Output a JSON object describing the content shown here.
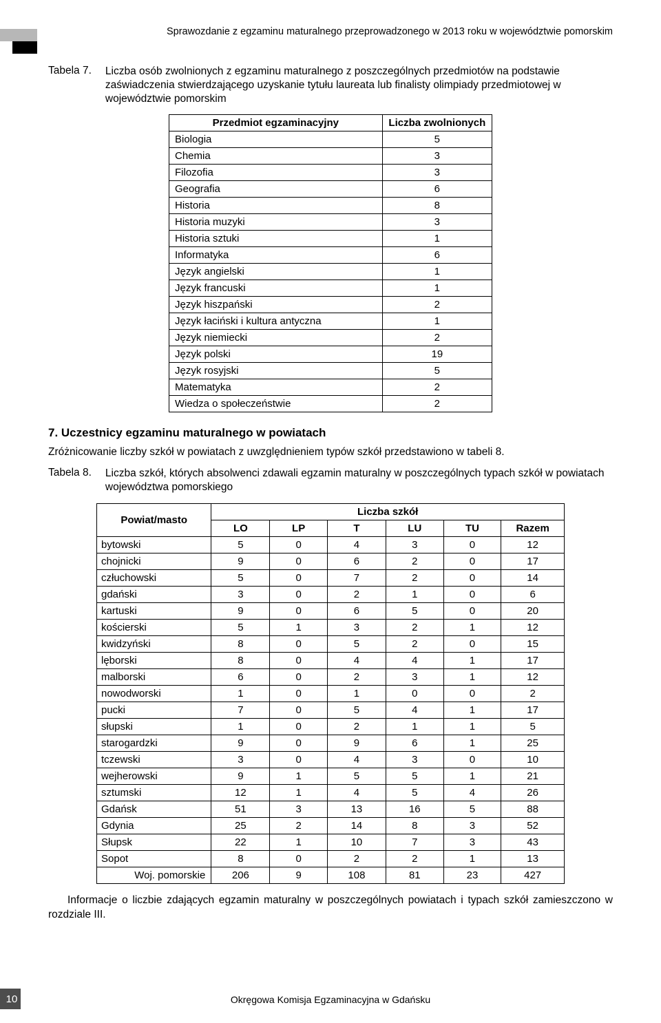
{
  "header_title": "Sprawozdanie z egzaminu maturalnego przeprowadzonego w 2013 roku w województwie pomorskim",
  "corner_colors": {
    "light": "#b7b7b7",
    "dark": "#000000"
  },
  "t7": {
    "label": "Tabela 7.",
    "caption": "Liczba osób zwolnionych z egzaminu maturalnego z poszczególnych przedmiotów na podstawie zaświadczenia stwierdzającego uzyskanie tytułu laureata lub finalisty olimpiady przedmiotowej w województwie pomorskim",
    "col_subject": "Przedmiot egzaminacyjny",
    "col_count": "Liczba zwolnionych",
    "rows": [
      {
        "s": "Biologia",
        "n": "5"
      },
      {
        "s": "Chemia",
        "n": "3"
      },
      {
        "s": "Filozofia",
        "n": "3"
      },
      {
        "s": "Geografia",
        "n": "6"
      },
      {
        "s": "Historia",
        "n": "8"
      },
      {
        "s": "Historia muzyki",
        "n": "3"
      },
      {
        "s": "Historia sztuki",
        "n": "1"
      },
      {
        "s": "Informatyka",
        "n": "6"
      },
      {
        "s": "Język angielski",
        "n": "1"
      },
      {
        "s": "Język francuski",
        "n": "1"
      },
      {
        "s": "Język hiszpański",
        "n": "2"
      },
      {
        "s": "Język łaciński i kultura antyczna",
        "n": "1"
      },
      {
        "s": "Język niemiecki",
        "n": "2"
      },
      {
        "s": "Język polski",
        "n": "19"
      },
      {
        "s": "Język rosyjski",
        "n": "5"
      },
      {
        "s": "Matematyka",
        "n": "2"
      },
      {
        "s": "Wiedza o społeczeństwie",
        "n": "2"
      }
    ]
  },
  "section_heading": "7.  Uczestnicy egzaminu maturalnego w powiatach",
  "paragraph_1": "Zróżnicowanie liczby szkół w powiatach z uwzględnieniem typów szkół przedstawiono w tabeli 8.",
  "t8": {
    "label": "Tabela 8.",
    "caption": "Liczba szkół, których absolwenci zdawali egzamin maturalny w poszczególnych typach szkół w powiatach województwa pomorskiego",
    "col_pm": "Powiat/masto",
    "col_group": "Liczba szkół",
    "sub": {
      "lo": "LO",
      "lp": "LP",
      "t": "T",
      "lu": "LU",
      "tu": "TU",
      "razem": "Razem"
    },
    "rows": [
      {
        "p": "bytowski",
        "lo": "5",
        "lp": "0",
        "t": "4",
        "lu": "3",
        "tu": "0",
        "r": "12"
      },
      {
        "p": "chojnicki",
        "lo": "9",
        "lp": "0",
        "t": "6",
        "lu": "2",
        "tu": "0",
        "r": "17"
      },
      {
        "p": "człuchowski",
        "lo": "5",
        "lp": "0",
        "t": "7",
        "lu": "2",
        "tu": "0",
        "r": "14"
      },
      {
        "p": "gdański",
        "lo": "3",
        "lp": "0",
        "t": "2",
        "lu": "1",
        "tu": "0",
        "r": "6"
      },
      {
        "p": "kartuski",
        "lo": "9",
        "lp": "0",
        "t": "6",
        "lu": "5",
        "tu": "0",
        "r": "20"
      },
      {
        "p": "kościerski",
        "lo": "5",
        "lp": "1",
        "t": "3",
        "lu": "2",
        "tu": "1",
        "r": "12"
      },
      {
        "p": "kwidzyński",
        "lo": "8",
        "lp": "0",
        "t": "5",
        "lu": "2",
        "tu": "0",
        "r": "15"
      },
      {
        "p": "lęborski",
        "lo": "8",
        "lp": "0",
        "t": "4",
        "lu": "4",
        "tu": "1",
        "r": "17"
      },
      {
        "p": "malborski",
        "lo": "6",
        "lp": "0",
        "t": "2",
        "lu": "3",
        "tu": "1",
        "r": "12"
      },
      {
        "p": "nowodworski",
        "lo": "1",
        "lp": "0",
        "t": "1",
        "lu": "0",
        "tu": "0",
        "r": "2"
      },
      {
        "p": "pucki",
        "lo": "7",
        "lp": "0",
        "t": "5",
        "lu": "4",
        "tu": "1",
        "r": "17"
      },
      {
        "p": "słupski",
        "lo": "1",
        "lp": "0",
        "t": "2",
        "lu": "1",
        "tu": "1",
        "r": "5"
      },
      {
        "p": "starogardzki",
        "lo": "9",
        "lp": "0",
        "t": "9",
        "lu": "6",
        "tu": "1",
        "r": "25"
      },
      {
        "p": "tczewski",
        "lo": "3",
        "lp": "0",
        "t": "4",
        "lu": "3",
        "tu": "0",
        "r": "10"
      },
      {
        "p": "wejherowski",
        "lo": "9",
        "lp": "1",
        "t": "5",
        "lu": "5",
        "tu": "1",
        "r": "21"
      },
      {
        "p": "sztumski",
        "lo": "12",
        "lp": "1",
        "t": "4",
        "lu": "5",
        "tu": "4",
        "r": "26"
      },
      {
        "p": "Gdańsk",
        "lo": "51",
        "lp": "3",
        "t": "13",
        "lu": "16",
        "tu": "5",
        "r": "88"
      },
      {
        "p": "Gdynia",
        "lo": "25",
        "lp": "2",
        "t": "14",
        "lu": "8",
        "tu": "3",
        "r": "52"
      },
      {
        "p": "Słupsk",
        "lo": "22",
        "lp": "1",
        "t": "10",
        "lu": "7",
        "tu": "3",
        "r": "43"
      },
      {
        "p": "Sopot",
        "lo": "8",
        "lp": "0",
        "t": "2",
        "lu": "2",
        "tu": "1",
        "r": "13"
      }
    ],
    "total": {
      "label": "Woj. pomorskie",
      "lo": "206",
      "lp": "9",
      "t": "108",
      "lu": "81",
      "tu": "23",
      "r": "427"
    }
  },
  "paragraph_2": "Informacje o liczbie zdających egzamin maturalny w poszczególnych powiatach i typach szkół zamieszczono w rozdziale III.",
  "footer_text": "Okręgowa Komisja Egzaminacyjna w Gdańsku",
  "page_number": "10"
}
